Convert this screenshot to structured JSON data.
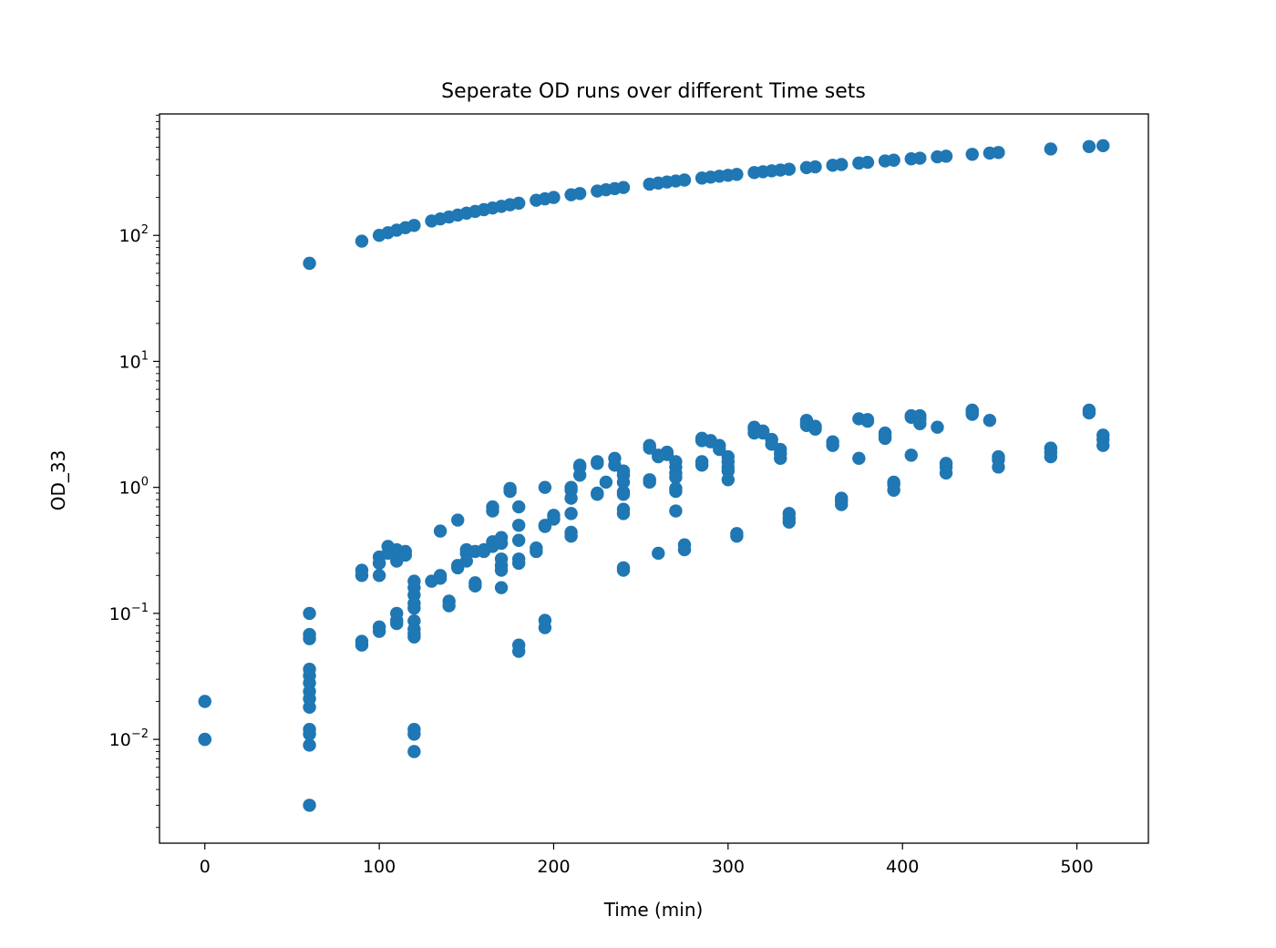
{
  "chart_data": {
    "type": "scatter",
    "title": "Seperate OD runs over different Time sets",
    "xlabel": "Time (min)",
    "ylabel": "OD_33",
    "xlim": [
      -26,
      541
    ],
    "ylim": [
      0.0015,
      920
    ],
    "yscale": "log",
    "grid": false,
    "legend": "none",
    "marker_color": "#1f77b4",
    "x_ticks": [
      0,
      100,
      200,
      300,
      400,
      500
    ],
    "x_tick_labels": [
      "0",
      "100",
      "200",
      "300",
      "400",
      "500"
    ],
    "y_ticks": [
      0.01,
      0.1,
      1,
      10,
      100
    ],
    "y_tick_labels": [
      {
        "base": "10",
        "exp": "−2"
      },
      {
        "base": "10",
        "exp": "−1"
      },
      {
        "base": "10",
        "exp": "0"
      },
      {
        "base": "10",
        "exp": "1"
      },
      {
        "base": "10",
        "exp": "2"
      }
    ],
    "series": [
      {
        "points": [
          [
            60,
            60
          ],
          [
            90,
            90
          ],
          [
            100,
            100
          ],
          [
            105,
            105
          ],
          [
            110,
            110
          ],
          [
            115,
            115
          ],
          [
            120,
            120
          ],
          [
            130,
            130
          ],
          [
            135,
            135
          ],
          [
            140,
            140
          ],
          [
            145,
            145
          ],
          [
            150,
            150
          ],
          [
            155,
            155
          ],
          [
            160,
            160
          ],
          [
            165,
            165
          ],
          [
            170,
            170
          ],
          [
            175,
            175
          ],
          [
            180,
            180
          ],
          [
            190,
            190
          ],
          [
            195,
            195
          ],
          [
            200,
            200
          ],
          [
            210,
            210
          ],
          [
            215,
            215
          ],
          [
            225,
            225
          ],
          [
            230,
            230
          ],
          [
            235,
            235
          ],
          [
            240,
            240
          ],
          [
            255,
            255
          ],
          [
            260,
            260
          ],
          [
            265,
            265
          ],
          [
            270,
            270
          ],
          [
            275,
            275
          ],
          [
            285,
            285
          ],
          [
            290,
            290
          ],
          [
            295,
            295
          ],
          [
            300,
            300
          ],
          [
            305,
            305
          ],
          [
            315,
            315
          ],
          [
            320,
            320
          ],
          [
            325,
            325
          ],
          [
            330,
            330
          ],
          [
            335,
            335
          ],
          [
            345,
            345
          ],
          [
            350,
            350
          ],
          [
            360,
            360
          ],
          [
            365,
            365
          ],
          [
            375,
            375
          ],
          [
            380,
            380
          ],
          [
            390,
            390
          ],
          [
            395,
            395
          ],
          [
            405,
            405
          ],
          [
            410,
            410
          ],
          [
            420,
            420
          ],
          [
            425,
            425
          ],
          [
            440,
            440
          ],
          [
            450,
            450
          ],
          [
            455,
            455
          ],
          [
            485,
            485
          ],
          [
            507,
            507
          ],
          [
            515,
            515
          ],
          [
            0,
            0.02
          ],
          [
            0,
            0.01
          ],
          [
            0,
            0.01
          ],
          [
            60,
            0.1
          ],
          [
            60,
            0.068
          ],
          [
            60,
            0.063
          ],
          [
            60,
            0.036
          ],
          [
            60,
            0.032
          ],
          [
            60,
            0.028
          ],
          [
            60,
            0.024
          ],
          [
            60,
            0.021
          ],
          [
            60,
            0.018
          ],
          [
            60,
            0.012
          ],
          [
            60,
            0.011
          ],
          [
            60,
            0.009
          ],
          [
            60,
            0.003
          ],
          [
            90,
            0.22
          ],
          [
            90,
            0.2
          ],
          [
            90,
            0.06
          ],
          [
            90,
            0.056
          ],
          [
            100,
            0.28
          ],
          [
            100,
            0.25
          ],
          [
            100,
            0.2
          ],
          [
            100,
            0.078
          ],
          [
            100,
            0.072
          ],
          [
            105,
            0.34
          ],
          [
            105,
            0.3
          ],
          [
            110,
            0.32
          ],
          [
            110,
            0.26
          ],
          [
            110,
            0.1
          ],
          [
            110,
            0.088
          ],
          [
            110,
            0.083
          ],
          [
            115,
            0.31
          ],
          [
            115,
            0.29
          ],
          [
            120,
            0.18
          ],
          [
            120,
            0.16
          ],
          [
            120,
            0.14
          ],
          [
            120,
            0.12
          ],
          [
            120,
            0.11
          ],
          [
            120,
            0.087
          ],
          [
            120,
            0.075
          ],
          [
            120,
            0.069
          ],
          [
            120,
            0.065
          ],
          [
            120,
            0.012
          ],
          [
            120,
            0.011
          ],
          [
            120,
            0.008
          ],
          [
            130,
            0.18
          ],
          [
            135,
            0.45
          ],
          [
            135,
            0.2
          ],
          [
            135,
            0.19
          ],
          [
            140,
            0.125
          ],
          [
            140,
            0.115
          ],
          [
            145,
            0.55
          ],
          [
            145,
            0.24
          ],
          [
            145,
            0.23
          ],
          [
            150,
            0.32
          ],
          [
            150,
            0.3
          ],
          [
            150,
            0.26
          ],
          [
            155,
            0.31
          ],
          [
            155,
            0.175
          ],
          [
            155,
            0.165
          ],
          [
            160,
            0.32
          ],
          [
            160,
            0.31
          ],
          [
            165,
            0.7
          ],
          [
            165,
            0.65
          ],
          [
            165,
            0.37
          ],
          [
            165,
            0.34
          ],
          [
            170,
            0.4
          ],
          [
            170,
            0.36
          ],
          [
            170,
            0.27
          ],
          [
            170,
            0.24
          ],
          [
            170,
            0.22
          ],
          [
            170,
            0.16
          ],
          [
            175,
            0.98
          ],
          [
            175,
            0.93
          ],
          [
            180,
            0.7
          ],
          [
            180,
            0.5
          ],
          [
            180,
            0.38
          ],
          [
            180,
            0.27
          ],
          [
            180,
            0.25
          ],
          [
            180,
            0.056
          ],
          [
            180,
            0.05
          ],
          [
            190,
            0.33
          ],
          [
            190,
            0.31
          ],
          [
            195,
            1.0
          ],
          [
            195,
            0.5
          ],
          [
            195,
            0.49
          ],
          [
            195,
            0.088
          ],
          [
            195,
            0.077
          ],
          [
            200,
            0.6
          ],
          [
            200,
            0.56
          ],
          [
            210,
            1.0
          ],
          [
            210,
            0.95
          ],
          [
            210,
            0.82
          ],
          [
            210,
            0.62
          ],
          [
            210,
            0.44
          ],
          [
            210,
            0.41
          ],
          [
            215,
            1.5
          ],
          [
            215,
            1.45
          ],
          [
            215,
            1.25
          ],
          [
            225,
            1.6
          ],
          [
            225,
            1.55
          ],
          [
            225,
            0.9
          ],
          [
            225,
            0.88
          ],
          [
            230,
            1.1
          ],
          [
            235,
            1.7
          ],
          [
            235,
            1.5
          ],
          [
            240,
            1.35
          ],
          [
            240,
            1.25
          ],
          [
            240,
            1.1
          ],
          [
            240,
            0.92
          ],
          [
            240,
            0.88
          ],
          [
            240,
            0.67
          ],
          [
            240,
            0.62
          ],
          [
            240,
            0.23
          ],
          [
            240,
            0.22
          ],
          [
            255,
            2.15
          ],
          [
            255,
            2.05
          ],
          [
            255,
            1.15
          ],
          [
            255,
            1.1
          ],
          [
            260,
            1.8
          ],
          [
            260,
            1.75
          ],
          [
            260,
            0.3
          ],
          [
            265,
            1.9
          ],
          [
            265,
            1.82
          ],
          [
            270,
            1.6
          ],
          [
            270,
            1.45
          ],
          [
            270,
            1.3
          ],
          [
            270,
            1.2
          ],
          [
            270,
            0.98
          ],
          [
            270,
            0.93
          ],
          [
            270,
            0.65
          ],
          [
            275,
            0.35
          ],
          [
            275,
            0.32
          ],
          [
            285,
            2.45
          ],
          [
            285,
            2.35
          ],
          [
            285,
            1.6
          ],
          [
            285,
            1.5
          ],
          [
            290,
            2.35
          ],
          [
            290,
            2.3
          ],
          [
            295,
            2.15
          ],
          [
            295,
            2.0
          ],
          [
            300,
            1.75
          ],
          [
            300,
            1.6
          ],
          [
            300,
            1.45
          ],
          [
            300,
            1.35
          ],
          [
            300,
            1.15
          ],
          [
            305,
            0.43
          ],
          [
            305,
            0.41
          ],
          [
            315,
            3.0
          ],
          [
            315,
            2.9
          ],
          [
            315,
            2.7
          ],
          [
            320,
            2.8
          ],
          [
            320,
            2.7
          ],
          [
            325,
            2.4
          ],
          [
            325,
            2.2
          ],
          [
            330,
            2.0
          ],
          [
            330,
            1.85
          ],
          [
            330,
            1.7
          ],
          [
            335,
            0.62
          ],
          [
            335,
            0.57
          ],
          [
            335,
            0.53
          ],
          [
            345,
            3.4
          ],
          [
            345,
            3.25
          ],
          [
            345,
            3.1
          ],
          [
            350,
            3.05
          ],
          [
            350,
            2.9
          ],
          [
            360,
            2.3
          ],
          [
            360,
            2.15
          ],
          [
            365,
            0.82
          ],
          [
            365,
            0.78
          ],
          [
            365,
            0.73
          ],
          [
            375,
            3.5
          ],
          [
            375,
            1.7
          ],
          [
            380,
            3.45
          ],
          [
            380,
            3.35
          ],
          [
            390,
            2.7
          ],
          [
            390,
            2.55
          ],
          [
            390,
            2.45
          ],
          [
            395,
            1.1
          ],
          [
            395,
            1.05
          ],
          [
            395,
            0.95
          ],
          [
            405,
            3.7
          ],
          [
            405,
            3.6
          ],
          [
            405,
            1.8
          ],
          [
            410,
            3.7
          ],
          [
            410,
            3.5
          ],
          [
            410,
            3.2
          ],
          [
            420,
            3.0
          ],
          [
            425,
            1.55
          ],
          [
            425,
            1.45
          ],
          [
            425,
            1.3
          ],
          [
            440,
            4.1
          ],
          [
            440,
            4.0
          ],
          [
            440,
            3.8
          ],
          [
            450,
            3.4
          ],
          [
            455,
            1.75
          ],
          [
            455,
            1.65
          ],
          [
            455,
            1.45
          ],
          [
            485,
            2.05
          ],
          [
            485,
            1.9
          ],
          [
            485,
            1.75
          ],
          [
            507,
            4.1
          ],
          [
            507,
            3.9
          ],
          [
            515,
            2.6
          ],
          [
            515,
            2.4
          ],
          [
            515,
            2.15
          ]
        ]
      }
    ]
  }
}
